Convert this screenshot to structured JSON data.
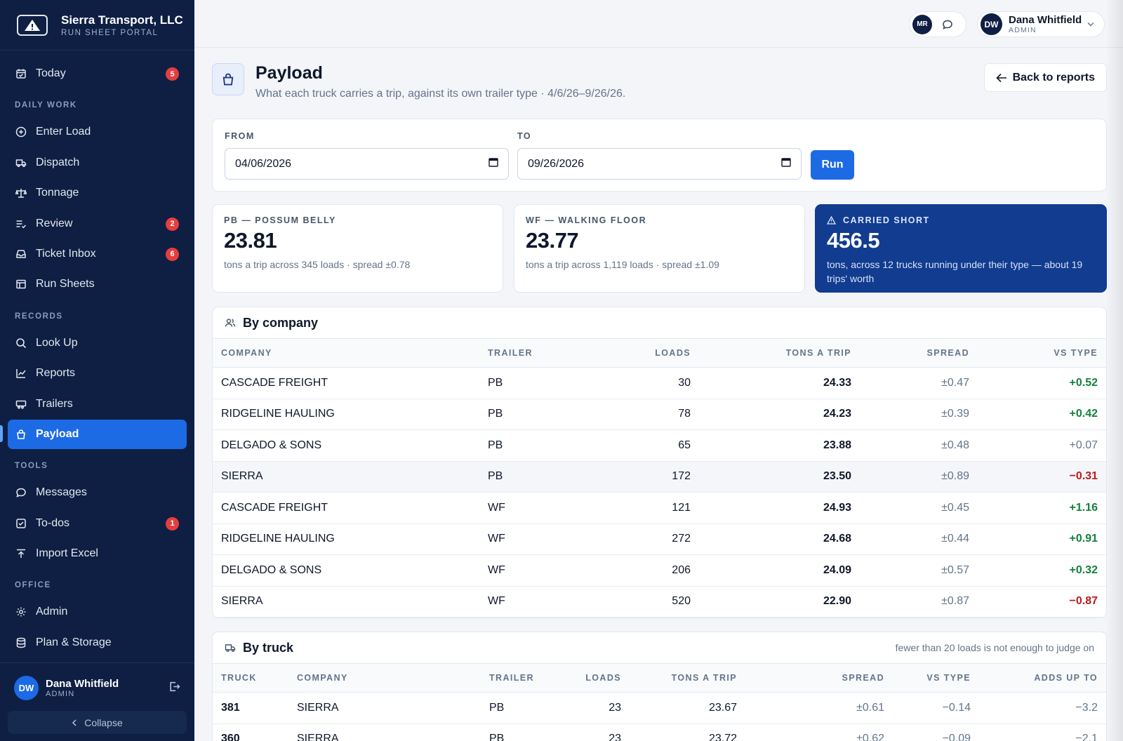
{
  "brand": {
    "name": "Sierra Transport, LLC",
    "subtitle": "RUN SHEET PORTAL"
  },
  "nav": {
    "today": {
      "label": "Today",
      "badge": "5"
    },
    "section_daily": "DAILY WORK",
    "enter_load": "Enter Load",
    "dispatch": "Dispatch",
    "tonnage": "Tonnage",
    "review": {
      "label": "Review",
      "badge": "2"
    },
    "ticket_inbox": {
      "label": "Ticket Inbox",
      "badge": "6"
    },
    "run_sheets": "Run Sheets",
    "section_records": "RECORDS",
    "look_up": "Look Up",
    "reports": "Reports",
    "trailers": "Trailers",
    "payload": "Payload",
    "section_tools": "TOOLS",
    "messages": "Messages",
    "todos": {
      "label": "To-dos",
      "badge": "1"
    },
    "import_excel": "Import Excel",
    "section_office": "OFFICE",
    "admin": "Admin",
    "plan_storage": "Plan & Storage"
  },
  "sidebar_user": {
    "initials": "DW",
    "name": "Dana Whitfield",
    "role": "ADMIN",
    "collapse": "Collapse"
  },
  "topbar": {
    "mr_initials": "MR",
    "user_initials": "DW",
    "user_name": "Dana Whitfield",
    "user_role": "ADMIN"
  },
  "page": {
    "title": "Payload",
    "subtitle": "What each truck carries a trip, against its own trailer type · 4/6/26–9/26/26.",
    "back_label": "Back to reports"
  },
  "filters": {
    "from_label": "FROM",
    "from_value": "04/06/2026",
    "to_label": "TO",
    "to_value": "09/26/2026",
    "run_label": "Run"
  },
  "stats": [
    {
      "label": "PB — POSSUM BELLY",
      "value": "23.81",
      "desc": "tons a trip across 345 loads · spread ±0.78"
    },
    {
      "label": "WF — WALKING FLOOR",
      "value": "23.77",
      "desc": "tons a trip across 1,119 loads · spread ±1.09"
    },
    {
      "label": "CARRIED SHORT",
      "value": "456.5",
      "desc": "tons, across 12 trucks running under their type — about 19 trips' worth"
    }
  ],
  "by_company": {
    "title": "By company",
    "columns": [
      "COMPANY",
      "TRAILER",
      "LOADS",
      "TONS A TRIP",
      "SPREAD",
      "VS TYPE"
    ],
    "rows": [
      {
        "company": "CASCADE FREIGHT",
        "trailer": "PB",
        "loads": "30",
        "tons": "24.33",
        "spread": "±0.47",
        "vs": "+0.52",
        "tone": "pos"
      },
      {
        "company": "RIDGELINE HAULING",
        "trailer": "PB",
        "loads": "78",
        "tons": "24.23",
        "spread": "±0.39",
        "vs": "+0.42",
        "tone": "pos"
      },
      {
        "company": "DELGADO & SONS",
        "trailer": "PB",
        "loads": "65",
        "tons": "23.88",
        "spread": "±0.48",
        "vs": "+0.07",
        "tone": "neu"
      },
      {
        "company": "SIERRA",
        "trailer": "PB",
        "loads": "172",
        "tons": "23.50",
        "spread": "±0.89",
        "vs": "−0.31",
        "tone": "neg"
      },
      {
        "company": "CASCADE FREIGHT",
        "trailer": "WF",
        "loads": "121",
        "tons": "24.93",
        "spread": "±0.45",
        "vs": "+1.16",
        "tone": "pos"
      },
      {
        "company": "RIDGELINE HAULING",
        "trailer": "WF",
        "loads": "272",
        "tons": "24.68",
        "spread": "±0.44",
        "vs": "+0.91",
        "tone": "pos"
      },
      {
        "company": "DELGADO & SONS",
        "trailer": "WF",
        "loads": "206",
        "tons": "24.09",
        "spread": "±0.57",
        "vs": "+0.32",
        "tone": "pos"
      },
      {
        "company": "SIERRA",
        "trailer": "WF",
        "loads": "520",
        "tons": "22.90",
        "spread": "±0.87",
        "vs": "−0.87",
        "tone": "neg"
      }
    ]
  },
  "by_truck": {
    "title": "By truck",
    "note": "fewer than 20 loads is not enough to judge on",
    "columns": [
      "TRUCK",
      "COMPANY",
      "TRAILER",
      "LOADS",
      "TONS A TRIP",
      "SPREAD",
      "VS TYPE",
      "ADDS UP TO"
    ],
    "rows": [
      {
        "truck": "381",
        "company": "SIERRA",
        "trailer": "PB",
        "loads": "23",
        "tons": "23.67",
        "spread": "±0.61",
        "vs": "−0.14",
        "adds": "−3.2"
      },
      {
        "truck": "360",
        "company": "SIERRA",
        "trailer": "PB",
        "loads": "23",
        "tons": "23.72",
        "spread": "±0.62",
        "vs": "−0.09",
        "adds": "−2.1"
      }
    ]
  },
  "colors": {
    "sidebar": "#0f1f43",
    "accent": "#1d6ae5",
    "positive": "#15803d",
    "negative": "#b91c1c",
    "badge": "#e53e3e"
  }
}
